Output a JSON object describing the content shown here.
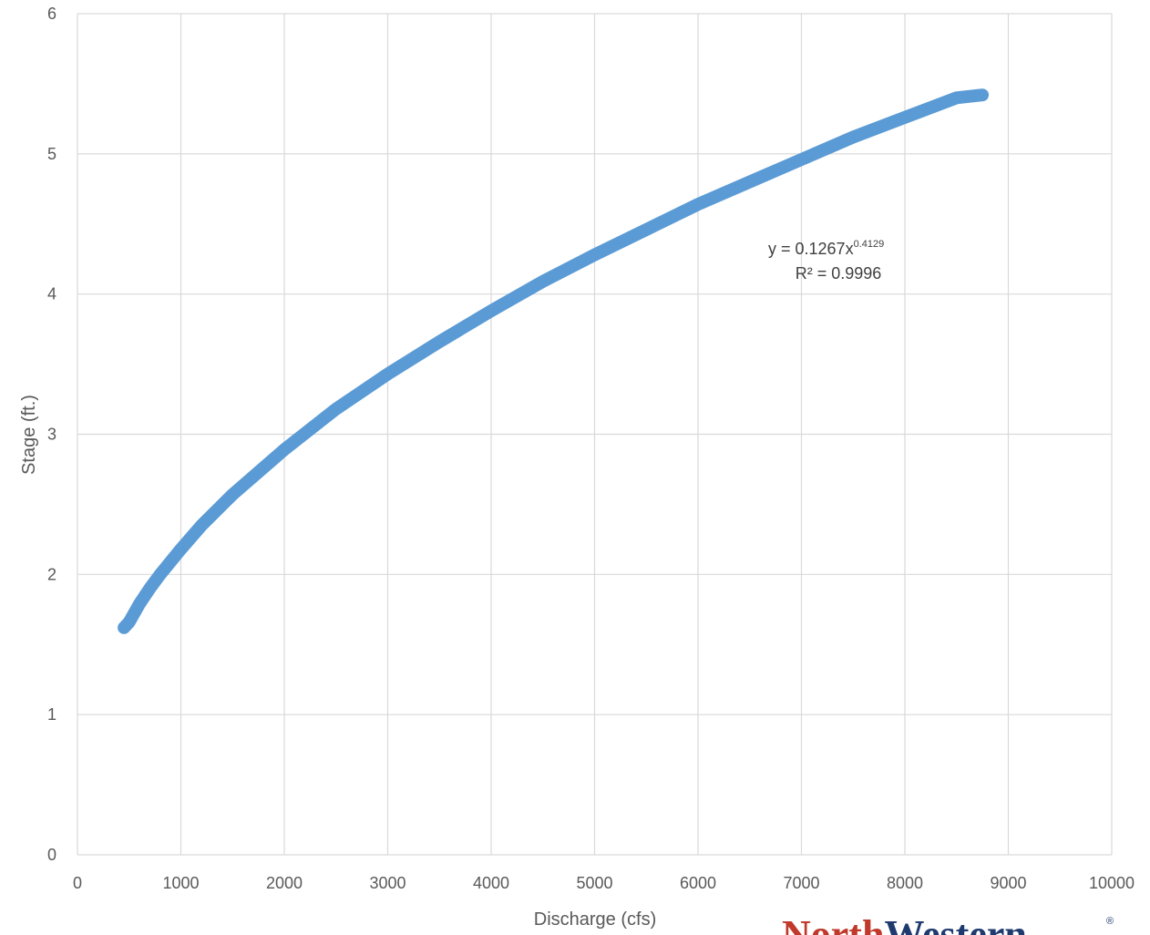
{
  "chart_data": {
    "type": "line",
    "title": "",
    "xlabel": "Discharge (cfs)",
    "ylabel": "Stage (ft.)",
    "xlim": [
      0,
      10000
    ],
    "ylim": [
      0,
      6
    ],
    "x_ticks": [
      "0",
      "1000",
      "2000",
      "3000",
      "4000",
      "5000",
      "6000",
      "7000",
      "8000",
      "9000",
      "10000"
    ],
    "y_ticks": [
      "0",
      "1",
      "2",
      "3",
      "4",
      "5",
      "6"
    ],
    "grid": true,
    "legend": "none",
    "series": [
      {
        "color": "#5b9bd5",
        "x": [
          450,
          500,
          600,
          700,
          800,
          1000,
          1200,
          1500,
          2000,
          2500,
          3000,
          3500,
          4000,
          4500,
          5000,
          5500,
          6000,
          6500,
          7000,
          7500,
          8000,
          8500,
          8750
        ],
        "y": [
          1.62,
          1.66,
          1.79,
          1.9,
          2.0,
          2.18,
          2.35,
          2.57,
          2.89,
          3.18,
          3.43,
          3.66,
          3.88,
          4.09,
          4.28,
          4.46,
          4.64,
          4.8,
          4.96,
          5.12,
          5.26,
          5.4,
          5.42
        ]
      }
    ],
    "trendline": {
      "type": "power",
      "equation_prefix": "y = 0.1267x",
      "equation_exponent": "0.4129",
      "r_squared_label": "R² = 0.9996"
    }
  },
  "logo": {
    "text_part1": "North",
    "text_part2": "Western",
    "mark": "®"
  },
  "colors": {
    "series": "#5b9bd5",
    "grid": "#d9d9d9",
    "text": "#595959",
    "logo_red": "#c0392b",
    "logo_navy": "#1f3a6e"
  }
}
